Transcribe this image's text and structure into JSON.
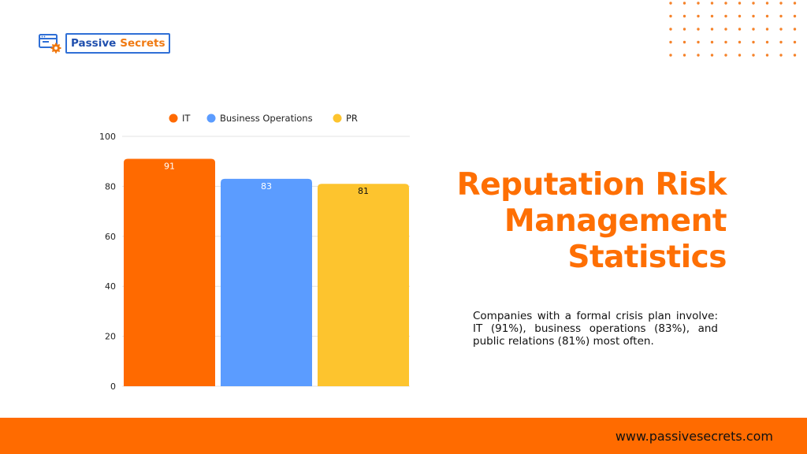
{
  "brand": {
    "word1": "Passive",
    "word2": "Secrets"
  },
  "heading": "Reputation Risk Management Statistics",
  "description": "Companies with a formal crisis plan involve: IT (91%), business operations (83%), and public relations (81%) most often.",
  "footer": {
    "url": "www.passivesecrets.com"
  },
  "colors": {
    "accent": "#fe6f03",
    "footer_bg": "#ff6b00",
    "brand_blue": "#2f6fd6"
  },
  "chart_data": {
    "type": "bar",
    "title": "",
    "xlabel": "",
    "ylabel": "",
    "ylim": [
      0,
      100
    ],
    "yticks": [
      0,
      20,
      40,
      60,
      80,
      100
    ],
    "grid": true,
    "legend_position": "top",
    "series": [
      {
        "name": "IT",
        "values": [
          91
        ],
        "color": "#ff6a00",
        "label_color": "#ffffff"
      },
      {
        "name": "Business Operations",
        "values": [
          83
        ],
        "color": "#5b9cff",
        "label_color": "#ffffff"
      },
      {
        "name": "PR",
        "values": [
          81
        ],
        "color": "#fdc42e",
        "label_color": "#111111"
      }
    ]
  }
}
